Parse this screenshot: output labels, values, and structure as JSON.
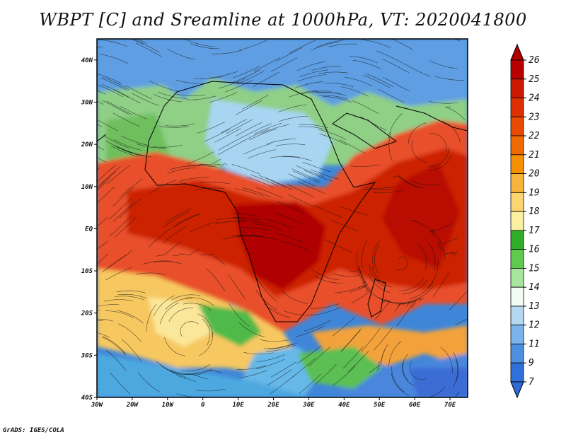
{
  "title": "WBPT [C] and Sreamline at 1000hPa, VT: 2020041800",
  "credit": "GrADS: IGES/COLA",
  "map": {
    "lat_labels": [
      "40N",
      "30N",
      "20N",
      "10N",
      "EQ",
      "10S",
      "20S",
      "30S",
      "40S"
    ],
    "lat_values": [
      40,
      30,
      20,
      10,
      0,
      -10,
      -20,
      -30,
      -40
    ],
    "lon_labels": [
      "30W",
      "20W",
      "10W",
      "0",
      "10E",
      "20E",
      "30E",
      "40E",
      "50E",
      "60E",
      "70E"
    ],
    "lon_values": [
      -30,
      -20,
      -10,
      0,
      10,
      20,
      30,
      40,
      50,
      60,
      70
    ],
    "lon_range": [
      -30,
      75
    ],
    "lat_range": [
      -40,
      45
    ]
  },
  "colorbar": {
    "labels": [
      "26",
      "25",
      "24",
      "23",
      "22",
      "21",
      "20",
      "19",
      "18",
      "17",
      "16",
      "15",
      "14",
      "13",
      "12",
      "11",
      "9",
      "7"
    ],
    "colors": [
      "#b80000",
      "#cc1800",
      "#dd3000",
      "#e84a00",
      "#f06a00",
      "#f59000",
      "#f8b43a",
      "#fbd670",
      "#fbf0a0",
      "#2fae2a",
      "#5fcb4e",
      "#a8e6a0",
      "#f0fcf4",
      "#b4d8f2",
      "#7ab4ea",
      "#4e90e0",
      "#3070da"
    ],
    "top_cap": "#b00000",
    "bottom_cap": "#2e6ad8"
  }
}
